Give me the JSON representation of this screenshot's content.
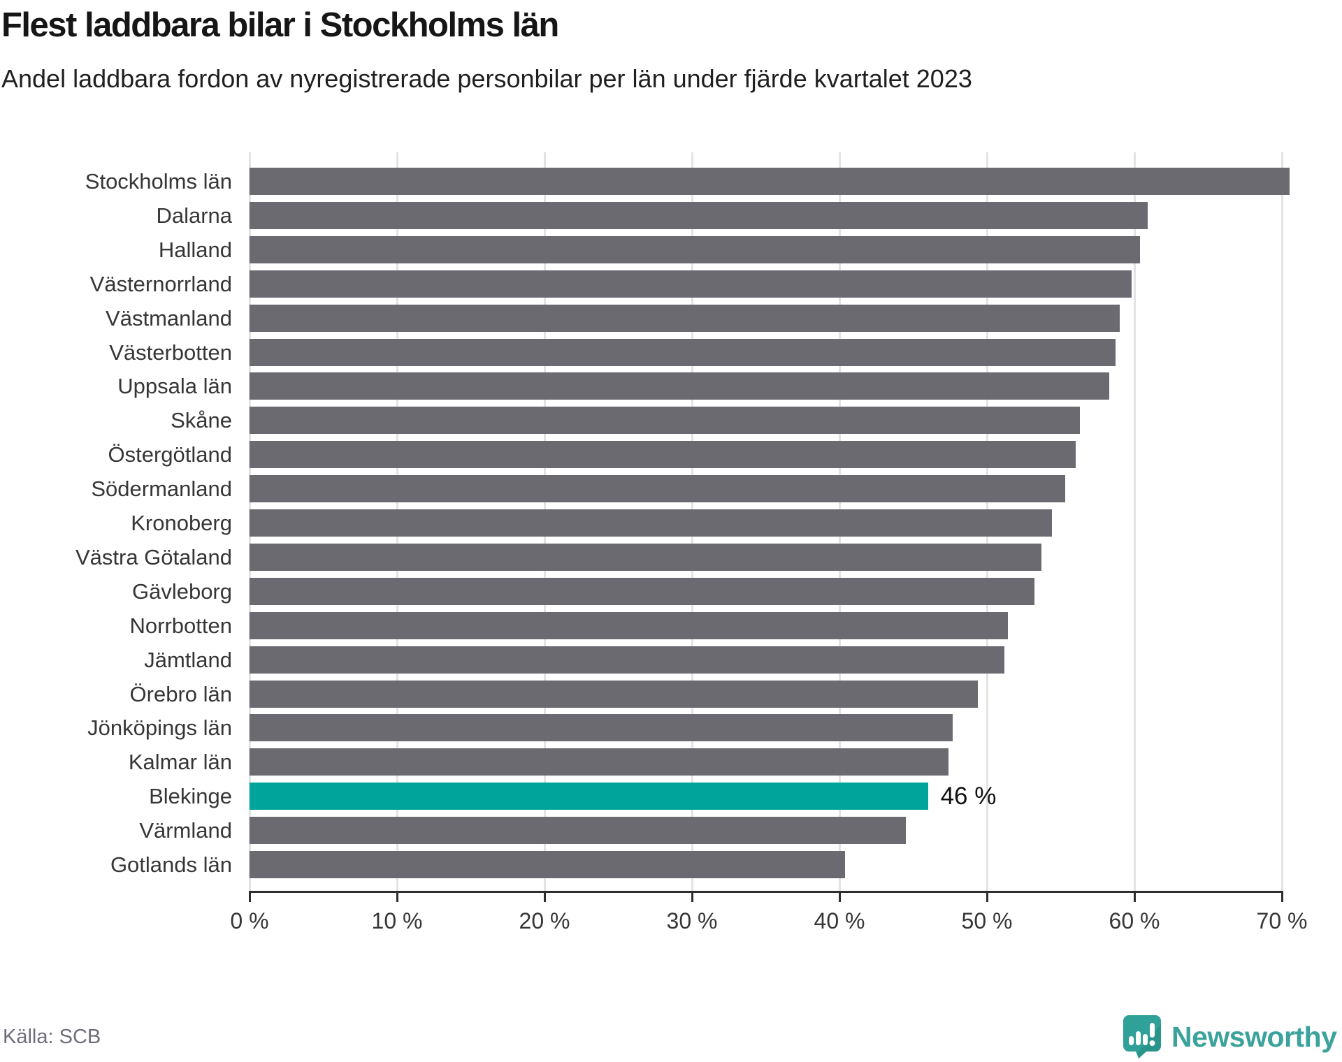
{
  "title": "Flest laddbara bilar i Stockholms län",
  "subtitle": "Andel laddbara fordon av nyregistrerade personbilar per län under fjärde kvartalet 2023",
  "source": "Källa: SCB",
  "branding": {
    "name": "Newsworthy",
    "logo_icon": "bar-chart-speech-bubble-icon"
  },
  "colors": {
    "bar": "#6a6a70",
    "highlight": "#00a49b",
    "grid": "#e3e3e3",
    "axis": "#2e2e2e",
    "text": "#363636",
    "brand_teal": "#3ba39b"
  },
  "chart_data": {
    "type": "bar",
    "orientation": "horizontal",
    "unit": "%",
    "title": "Flest laddbara bilar i Stockholms län",
    "subtitle": "Andel laddbara fordon av nyregistrerade personbilar per län under fjärde kvartalet 2023",
    "xlabel": "",
    "ylabel": "",
    "xlim": [
      0,
      70
    ],
    "grid": true,
    "legend": false,
    "categories": [
      "Stockholms län",
      "Dalarna",
      "Halland",
      "Västernorrland",
      "Västmanland",
      "Västerbotten",
      "Uppsala län",
      "Skåne",
      "Östergötland",
      "Södermanland",
      "Kronoberg",
      "Västra Götaland",
      "Gävleborg",
      "Norrbotten",
      "Jämtland",
      "Örebro län",
      "Jönköpings län",
      "Kalmar län",
      "Blekinge",
      "Värmland",
      "Gotlands län"
    ],
    "values": [
      70.5,
      60.9,
      60.4,
      59.8,
      59.0,
      58.7,
      58.3,
      56.3,
      56.0,
      55.3,
      54.4,
      53.7,
      53.2,
      51.4,
      51.2,
      49.4,
      47.7,
      47.4,
      46.0,
      44.5,
      40.4
    ],
    "highlight_category": "Blekinge",
    "highlight_label": "46 %",
    "xticks": [
      "0 %",
      "10 %",
      "20 %",
      "30 %",
      "40 %",
      "50 %",
      "60 %",
      "70 %"
    ]
  }
}
